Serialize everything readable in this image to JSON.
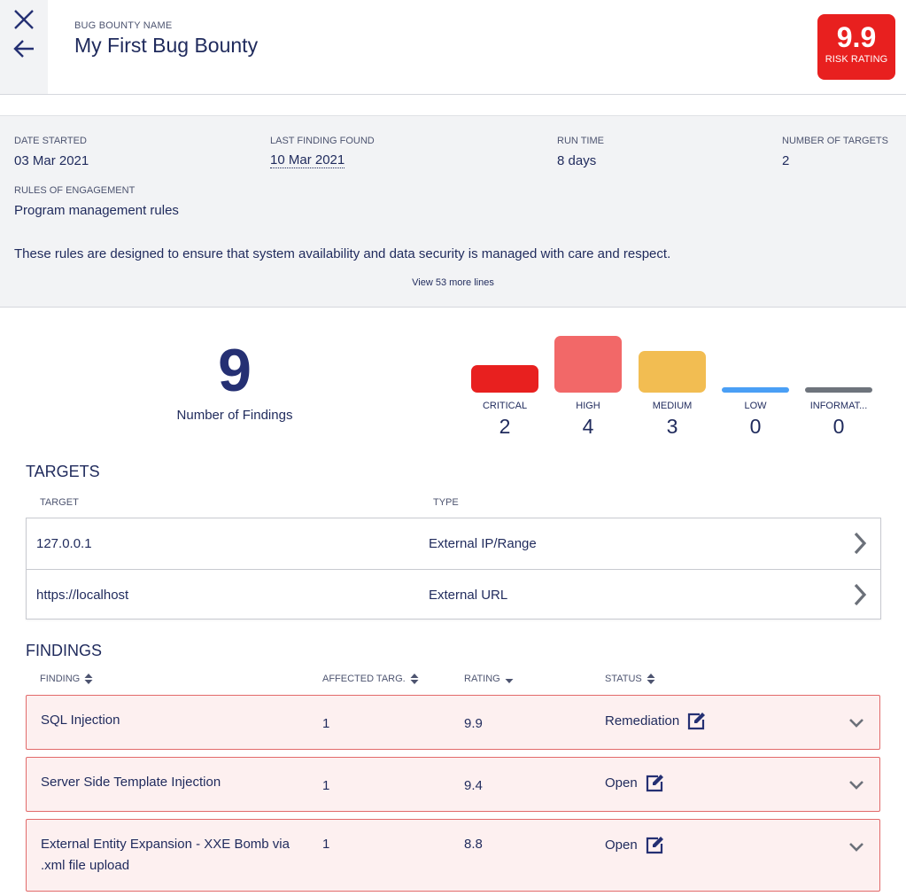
{
  "header": {
    "label": "BUG BOUNTY NAME",
    "title": "My First Bug Bounty",
    "risk": {
      "value": "9.9",
      "label": "RISK RATING",
      "color": "#e8201f"
    },
    "icons": {
      "close": "close-icon",
      "back": "arrow-left-icon"
    }
  },
  "details": {
    "date_started": {
      "label": "DATE STARTED",
      "value": "03 Mar 2021"
    },
    "last_finding": {
      "label": "LAST FINDING FOUND",
      "value": "10 Mar 2021"
    },
    "run_time": {
      "label": "RUN TIME",
      "value": "8 days"
    },
    "num_targets": {
      "label": "NUMBER OF TARGETS",
      "value": "2"
    },
    "rules": {
      "label": "RULES OF ENGAGEMENT",
      "value": "Program management rules"
    },
    "description": "These rules are designed to ensure that system availability and data security is managed with care and respect.",
    "view_more": "View 53 more lines"
  },
  "summary": {
    "count": "9",
    "count_label": "Number of Findings",
    "severities": [
      {
        "label": "CRITICAL",
        "count": "2",
        "color": "#e8201f"
      },
      {
        "label": "HIGH",
        "count": "4",
        "color": "#f26868"
      },
      {
        "label": "MEDIUM",
        "count": "3",
        "color": "#f2bd52"
      },
      {
        "label": "LOW",
        "count": "0",
        "color": "#4a9ff5"
      },
      {
        "label": "INFORMAT...",
        "count": "0",
        "color": "#6e747c"
      }
    ]
  },
  "targets": {
    "title": "TARGETS",
    "columns": {
      "target": "TARGET",
      "type": "TYPE"
    },
    "rows": [
      {
        "target": "127.0.0.1",
        "type": "External IP/Range"
      },
      {
        "target": "https://localhost",
        "type": "External URL"
      }
    ]
  },
  "findings": {
    "title": "FINDINGS",
    "columns": {
      "finding": "FINDING",
      "affected": "AFFECTED TARG.",
      "rating": "RATING",
      "status": "STATUS"
    },
    "rows": [
      {
        "name": "SQL Injection",
        "affected": "1",
        "rating": "9.9",
        "status": "Remediation"
      },
      {
        "name": "Server Side Template Injection",
        "affected": "1",
        "rating": "9.4",
        "status": "Open"
      },
      {
        "name": "External Entity Expansion - XXE Bomb via .xml file upload",
        "affected": "1",
        "rating": "8.8",
        "status": "Open"
      }
    ]
  }
}
